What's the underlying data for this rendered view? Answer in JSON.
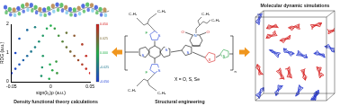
{
  "chart_data": {
    "type": "scatter",
    "x_label": "sign(λ₂)ρ (a.u.)",
    "y_label": "RDG (a.u.)",
    "x": [
      -0.05,
      -0.045,
      -0.04,
      -0.035,
      -0.03,
      -0.025,
      -0.02,
      -0.015,
      -0.01,
      -0.005,
      0.005,
      0.01,
      0.015,
      0.02,
      0.025,
      0.03,
      0.035,
      0.04,
      0.045,
      0.05,
      -0.012,
      -0.011,
      -0.01,
      0.008,
      0.007,
      -0.002,
      -0.001,
      0.002,
      -0.04,
      -0.03,
      -0.02,
      0.02,
      0.03,
      0.04,
      0,
      -0.045,
      0.045
    ],
    "values": [
      0.3,
      0.45,
      0.6,
      0.75,
      0.9,
      1.05,
      1.2,
      1.4,
      1.6,
      1.85,
      1.85,
      1.6,
      1.4,
      1.2,
      1.05,
      0.9,
      0.75,
      0.6,
      0.45,
      0.3,
      0.2,
      0.5,
      0.9,
      0.3,
      0.7,
      0.1,
      0.6,
      0.4,
      1.5,
      1.8,
      1.9,
      1.7,
      1.6,
      1.3,
      1.95,
      1.0,
      0.9
    ],
    "xlim": [
      -0.05,
      0.05
    ],
    "xticks": [
      -0.05,
      0,
      0.05
    ],
    "ylim": [
      0,
      2
    ],
    "yticks": [
      0,
      1,
      2
    ],
    "grid": false,
    "colorbar": {
      "range": [
        -0.05,
        0.05
      ],
      "colors": [
        "#1f3fd6",
        "#22b04a",
        "#d62020"
      ],
      "ticks": [
        {
          "value": 0.05,
          "label": "0.050"
        },
        {
          "value": 0.025,
          "label": "0.025"
        },
        {
          "value": 0,
          "label": "0.000"
        },
        {
          "value": -0.025,
          "label": "-0.025"
        },
        {
          "value": -0.05,
          "label": "-0.050"
        }
      ]
    }
  },
  "panels": {
    "dft": {
      "label": "Density functional theory calculations"
    },
    "structure": {
      "label": "Structural engineering",
      "note": "X = O, S, Se",
      "donor_atoms": [
        "S",
        "S",
        "S",
        "S",
        "F",
        "F"
      ],
      "acceptor_atoms": [
        "O",
        "O",
        "N",
        "S",
        "X",
        "S"
      ],
      "side_chains": [
        "C₄H₉",
        "C₂H₅",
        "C₄H₉",
        "C₂H₅",
        "C₄H₉",
        "C₂H₅"
      ],
      "repeat": "n"
    },
    "md": {
      "label": "Molecular dynamic simulations"
    }
  }
}
